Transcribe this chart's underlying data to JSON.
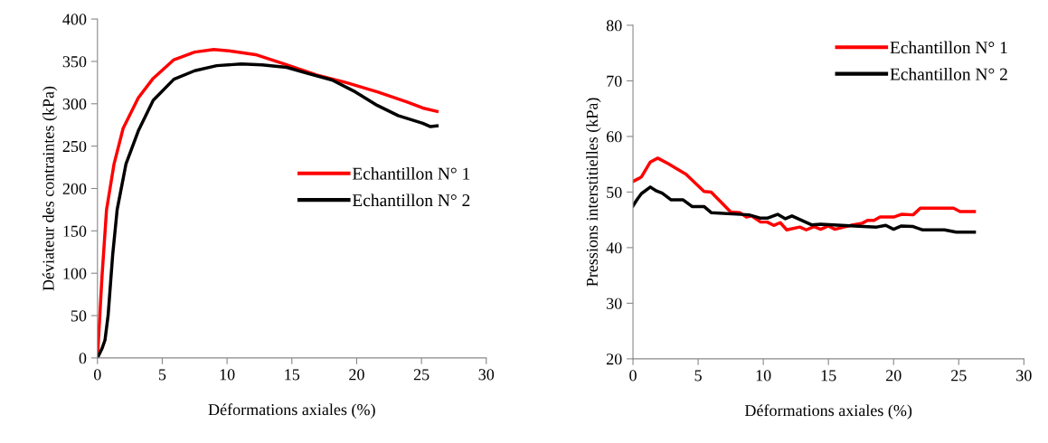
{
  "chart_data": [
    {
      "type": "line",
      "xlabel": "Déformations axiales (%)",
      "ylabel": "Déviateur des contraintes (kPa)",
      "xlim": [
        0,
        30
      ],
      "ylim": [
        0,
        400
      ],
      "xticks": [
        0,
        5,
        10,
        15,
        20,
        25,
        30
      ],
      "yticks": [
        0,
        50,
        100,
        150,
        200,
        250,
        300,
        350,
        400
      ],
      "legend": "right",
      "grid": false,
      "marker": "none",
      "line_style": "solid",
      "series": [
        {
          "name": "Echantillon N° 1",
          "color": "#ff0000",
          "x": [
            0,
            0.35,
            0.7,
            1.28,
            1.98,
            3.15,
            4.3,
            5.9,
            7.5,
            8.97,
            10.4,
            12.2,
            14.6,
            16.9,
            19.2,
            21.6,
            23.9,
            25.1,
            26.2
          ],
          "values": [
            0,
            96,
            175,
            229,
            271,
            307,
            330,
            352,
            361,
            364,
            362,
            358,
            346,
            334,
            325,
            314,
            302,
            295,
            291
          ]
        },
        {
          "name": "Echantillon N° 2",
          "color": "#000000",
          "x": [
            0,
            0.35,
            0.58,
            0.82,
            1.17,
            1.52,
            2.2,
            3.15,
            4.3,
            5.9,
            7.5,
            9.2,
            11.1,
            12.7,
            14.6,
            16.2,
            18.1,
            19.9,
            21.6,
            23.2,
            25.1,
            25.7,
            26.2
          ],
          "values": [
            0,
            11,
            21,
            50,
            121,
            175,
            229,
            268,
            304,
            329,
            339,
            345,
            347,
            346,
            343,
            336,
            328,
            314,
            298,
            286,
            277,
            273,
            274
          ]
        }
      ]
    },
    {
      "type": "line",
      "xlabel": "Déformations axiales (%)",
      "ylabel": "Pressions interstitielles (kPa)",
      "xlim": [
        0,
        30
      ],
      "ylim": [
        20,
        80
      ],
      "xticks": [
        0,
        5,
        10,
        15,
        20,
        25,
        30
      ],
      "yticks": [
        20,
        30,
        40,
        50,
        60,
        70,
        80
      ],
      "legend": "top right",
      "grid": false,
      "marker": "none",
      "line_style": "solid",
      "series": [
        {
          "name": "Echantillon N° 1",
          "color": "#ff0000",
          "x": [
            0,
            0.41,
            0.64,
            1.33,
            1.9,
            2.7,
            4.07,
            5.45,
            6.0,
            7.5,
            8.2,
            8.7,
            9.1,
            9.8,
            10.3,
            10.8,
            11.3,
            11.8,
            12.8,
            13.3,
            13.9,
            14.4,
            15.0,
            15.5,
            16.7,
            17.6,
            18.0,
            18.5,
            18.96,
            20.0,
            20.6,
            21.5,
            22.05,
            24.6,
            25.1,
            26.2
          ],
          "values": [
            51.9,
            52.4,
            52.7,
            55.4,
            56.1,
            55.1,
            53.2,
            50.1,
            50.0,
            46.4,
            46.3,
            45.5,
            45.7,
            44.6,
            44.6,
            44.0,
            44.5,
            43.2,
            43.7,
            43.2,
            43.8,
            43.3,
            43.9,
            43.3,
            44.0,
            44.4,
            44.9,
            44.9,
            45.5,
            45.5,
            46.0,
            45.9,
            47.1,
            47.1,
            46.5,
            46.5
          ]
        },
        {
          "name": "Echantillon N° 2",
          "color": "#000000",
          "x": [
            0,
            0.3,
            0.64,
            1.33,
            1.8,
            2.24,
            2.93,
            3.85,
            4.53,
            5.45,
            6.0,
            8.9,
            9.8,
            10.3,
            11.1,
            11.7,
            12.2,
            13.7,
            14.4,
            16.0,
            18.7,
            19.4,
            20.0,
            20.6,
            21.5,
            22.2,
            23.9,
            24.8,
            26.2
          ],
          "values": [
            47.5,
            48.6,
            49.7,
            50.9,
            50.2,
            49.8,
            48.6,
            48.6,
            47.4,
            47.4,
            46.3,
            45.9,
            45.3,
            45.3,
            46.0,
            45.2,
            45.7,
            44.1,
            44.2,
            44.0,
            43.7,
            44.0,
            43.3,
            43.9,
            43.8,
            43.2,
            43.2,
            42.8,
            42.8
          ]
        }
      ]
    }
  ]
}
